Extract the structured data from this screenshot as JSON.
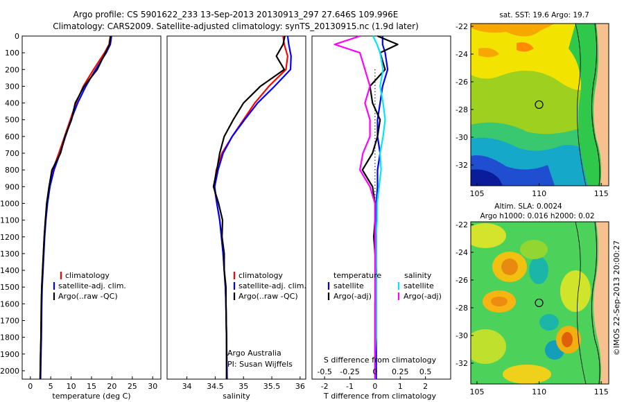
{
  "header": {
    "title_line1": "Argo profile: CS 5901622_233 13-Sep-2013 20130913_297 27.646S 109.996E",
    "title_line2": "Climatology: CARS2009. Satellite-adjusted climatology: synTS_20130915.nc (1.9d later)"
  },
  "colors": {
    "climatology": "#ff0000",
    "satellite": "#0000ff",
    "argo": "#000000",
    "salinity_satellite": "#00e5ff",
    "salinity_argo": "#ff00ff",
    "map_land": "#f9c08f"
  },
  "depth_axis": {
    "min": 0,
    "max": 2050,
    "ticks": [
      0,
      100,
      200,
      300,
      400,
      500,
      600,
      700,
      800,
      900,
      1000,
      1100,
      1200,
      1300,
      1400,
      1500,
      1600,
      1700,
      1800,
      1900,
      2000
    ],
    "tick_labels": [
      "0",
      "100",
      "200",
      "300",
      "400",
      "500",
      "600",
      "700",
      "800",
      "900",
      "1000",
      "1100",
      "1200",
      "1300",
      "1400",
      "1500",
      "1600",
      "1700",
      "1800",
      "1900",
      "2000"
    ]
  },
  "chart_data": [
    {
      "type": "line",
      "xlabel": "temperature (deg C)",
      "xlim": [
        -2,
        32
      ],
      "ylim": [
        2050,
        0
      ],
      "x_ticks": [
        0,
        5,
        10,
        15,
        20,
        25,
        30
      ],
      "x_tick_labels": [
        "0",
        "5",
        "10",
        "15",
        "20",
        "25",
        "30"
      ],
      "legend": [
        "climatology",
        "satellite-adj. clim.",
        "Argo(..raw -QC)"
      ],
      "series": [
        {
          "name": "climatology",
          "x": [
            19.6,
            19.3,
            18.2,
            15.5,
            13.0,
            11.2,
            9.8,
            8.4,
            7.0,
            5.5,
            4.6,
            4.1,
            3.7,
            3.4,
            3.2,
            3.0,
            2.8,
            2.7,
            2.6,
            2.5,
            2.4
          ],
          "depth": [
            0,
            50,
            100,
            200,
            300,
            400,
            500,
            600,
            700,
            800,
            900,
            1000,
            1100,
            1200,
            1300,
            1400,
            1500,
            1600,
            1800,
            1900,
            2050
          ]
        },
        {
          "name": "satellite-adj. clim.",
          "x": [
            19.9,
            19.6,
            18.6,
            16.0,
            13.6,
            11.6,
            10.0,
            8.6,
            7.3,
            5.8,
            4.8,
            4.2,
            3.8,
            3.5,
            3.3,
            3.1,
            2.9,
            2.8,
            2.7,
            2.6,
            2.5
          ],
          "depth": [
            0,
            50,
            100,
            200,
            300,
            400,
            500,
            600,
            700,
            800,
            900,
            1000,
            1100,
            1200,
            1300,
            1400,
            1500,
            1600,
            1800,
            1900,
            2050
          ]
        },
        {
          "name": "Argo(..raw -QC)",
          "x": [
            19.7,
            19.4,
            18.4,
            16.4,
            13.2,
            11.0,
            10.1,
            8.5,
            7.4,
            5.3,
            4.6,
            4.0,
            3.7,
            3.4,
            3.2,
            3.0,
            2.8,
            2.7,
            2.6,
            2.5,
            2.4
          ],
          "depth": [
            0,
            50,
            100,
            200,
            300,
            400,
            500,
            600,
            700,
            800,
            900,
            1000,
            1100,
            1200,
            1300,
            1400,
            1500,
            1600,
            1800,
            1900,
            2050
          ]
        }
      ]
    },
    {
      "type": "line",
      "xlabel": "salinity",
      "xlim": [
        33.65,
        36.1
      ],
      "ylim": [
        2050,
        0
      ],
      "x_ticks": [
        34,
        34.5,
        35,
        35.5,
        36
      ],
      "x_tick_labels": [
        "34",
        "34.5",
        "35",
        "35.5",
        "36"
      ],
      "legend": [
        "climatology",
        "satellite-adj. clim.",
        "Argo(..raw -QC)"
      ],
      "annotations": [
        "Argo Australia",
        "PI: Susan Wijffels"
      ],
      "series": [
        {
          "name": "climatology",
          "x": [
            35.7,
            35.72,
            35.78,
            35.75,
            35.45,
            35.2,
            35.0,
            34.8,
            34.62,
            34.52,
            34.48,
            34.53,
            34.58,
            34.61,
            34.64,
            34.66,
            34.68,
            34.69,
            34.7,
            34.71
          ],
          "depth": [
            0,
            50,
            120,
            200,
            300,
            400,
            500,
            600,
            700,
            800,
            900,
            1000,
            1100,
            1200,
            1300,
            1400,
            1500,
            1600,
            1800,
            2050
          ]
        },
        {
          "name": "satellite-adj. clim.",
          "x": [
            35.78,
            35.8,
            35.84,
            35.83,
            35.55,
            35.25,
            35.02,
            34.8,
            34.64,
            34.55,
            34.49,
            34.53,
            34.58,
            34.61,
            34.64,
            34.66,
            34.68,
            34.69,
            34.7,
            34.71
          ],
          "depth": [
            0,
            50,
            120,
            200,
            300,
            400,
            500,
            600,
            700,
            800,
            900,
            1000,
            1100,
            1200,
            1300,
            1400,
            1500,
            1600,
            1800,
            2050
          ]
        },
        {
          "name": "Argo(..raw -QC)",
          "x": [
            35.73,
            35.7,
            35.58,
            35.72,
            35.3,
            35.0,
            34.82,
            34.66,
            34.58,
            34.53,
            34.47,
            34.56,
            34.63,
            34.62,
            34.66,
            34.66,
            34.69,
            34.69,
            34.7,
            34.7
          ],
          "depth": [
            0,
            50,
            120,
            200,
            300,
            400,
            500,
            600,
            700,
            800,
            900,
            1000,
            1100,
            1200,
            1300,
            1400,
            1500,
            1600,
            1800,
            2050
          ]
        }
      ]
    },
    {
      "type": "line",
      "xlabel": "T difference from climatology",
      "xlabel_top": "S difference from climatology",
      "xlim": [
        -2.5,
        3.0
      ],
      "ylim": [
        2050,
        0
      ],
      "x_ticks": [
        -2,
        -1,
        0,
        1,
        2
      ],
      "x_tick_labels": [
        "-2",
        "-1",
        "0",
        "1",
        "2"
      ],
      "s_ticks": [
        -0.5,
        -0.25,
        0,
        0.25,
        0.5
      ],
      "s_tick_labels": [
        "-0.5",
        "-0.25",
        "0",
        "0.25",
        "0.5"
      ],
      "legend_temperature_title": "temperature",
      "legend_salinity_title": "salinity",
      "legend_labels": [
        "satellite",
        "Argo(-adj)"
      ],
      "series": [
        {
          "name": "satellite",
          "variable": "T",
          "x": [
            0.3,
            0.3,
            0.4,
            0.5,
            0.3,
            0.2,
            0.1,
            0.1,
            0.2,
            0.1,
            0.1,
            0.05,
            0.05,
            0.05,
            0.05,
            0.05,
            0.05,
            0.05,
            0.05
          ],
          "depth": [
            0,
            50,
            100,
            200,
            300,
            400,
            500,
            600,
            700,
            800,
            900,
            1000,
            1100,
            1200,
            1400,
            1600,
            1800,
            1900,
            2050
          ]
        },
        {
          "name": "Argo(-adj)",
          "variable": "T",
          "x": [
            0.1,
            0.9,
            0.2,
            0.4,
            -0.2,
            -0.1,
            0.2,
            0.1,
            -0.1,
            -0.5,
            -0.1,
            0.0,
            0.0,
            -0.05,
            0.05,
            0.0,
            0.0,
            0.0,
            0.0
          ],
          "depth": [
            0,
            50,
            100,
            200,
            300,
            400,
            500,
            600,
            700,
            800,
            900,
            1000,
            1100,
            1200,
            1400,
            1600,
            1800,
            1900,
            2050
          ]
        },
        {
          "name": "satellite",
          "variable": "S",
          "x": [
            -0.02,
            0.02,
            0.05,
            0.08,
            0.05,
            0.08,
            0.1,
            0.08,
            0.05,
            0.06,
            0.04,
            0.02,
            0.02,
            0.01,
            0.01,
            0.01,
            0.01,
            0.0,
            0.0
          ],
          "depth": [
            0,
            50,
            100,
            200,
            300,
            400,
            500,
            600,
            700,
            800,
            900,
            1000,
            1100,
            1200,
            1400,
            1600,
            1800,
            1900,
            2050
          ]
        },
        {
          "name": "Argo(-adj)",
          "variable": "S",
          "x": [
            -0.15,
            -0.4,
            -0.15,
            -0.1,
            -0.05,
            -0.1,
            -0.05,
            -0.05,
            -0.12,
            -0.15,
            -0.05,
            0.0,
            0.0,
            0.0,
            0.0,
            0.0,
            0.0,
            0.0,
            0.0
          ],
          "depth": [
            0,
            50,
            100,
            200,
            300,
            400,
            500,
            600,
            700,
            800,
            900,
            1000,
            1100,
            1200,
            1400,
            1600,
            1800,
            1900,
            2050
          ]
        }
      ]
    },
    {
      "type": "heatmap",
      "title": "sat. SST: 19.6  Argo: 19.7",
      "x_tick_labels": [
        "105",
        "110",
        "115"
      ],
      "y_tick_labels": [
        "-22",
        "-24",
        "-26",
        "-28",
        "-30",
        "-32"
      ],
      "argo_position": [
        109.996,
        -27.646
      ]
    },
    {
      "type": "heatmap",
      "title_line1": "Altim. SLA: 0.0024",
      "title_line2": "Argo h1000: 0.016 h2000: 0.02",
      "x_tick_labels": [
        "105",
        "110",
        "115"
      ],
      "y_tick_labels": [
        "-22",
        "-24",
        "-26",
        "-28",
        "-30",
        "-32"
      ],
      "argo_position": [
        109.996,
        -27.646
      ]
    }
  ],
  "footer_stamp": "©IMOS 22-Sep-2013 20:00:27"
}
